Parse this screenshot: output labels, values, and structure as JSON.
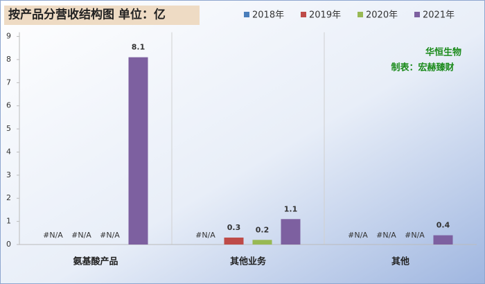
{
  "chart_data": {
    "type": "bar",
    "title": "按产品分营收结构图 单位：亿",
    "annotations": [
      "华恒生物",
      "制表：宏赫臻财"
    ],
    "categories": [
      "氨基酸产品",
      "其他业务",
      "其他"
    ],
    "series": [
      {
        "name": "2018年",
        "color": "#4a7ebb",
        "values": [
          null,
          null,
          null
        ],
        "value_labels": [
          "#N/A",
          "#N/A",
          "#N/A"
        ]
      },
      {
        "name": "2019年",
        "color": "#be4b48",
        "values": [
          null,
          0.3,
          null
        ],
        "value_labels": [
          "#N/A",
          "0.3",
          "#N/A"
        ]
      },
      {
        "name": "2020年",
        "color": "#98b954",
        "values": [
          null,
          0.2,
          null
        ],
        "value_labels": [
          "#N/A",
          "0.2",
          "#N/A"
        ]
      },
      {
        "name": "2021年",
        "color": "#7d60a0",
        "values": [
          8.1,
          1.1,
          0.4
        ],
        "value_labels": [
          "8.1",
          "1.1",
          "0.4"
        ]
      }
    ],
    "ylim": [
      0,
      9
    ],
    "yticks": [
      0,
      1,
      2,
      3,
      4,
      5,
      6,
      7,
      8,
      9
    ]
  }
}
